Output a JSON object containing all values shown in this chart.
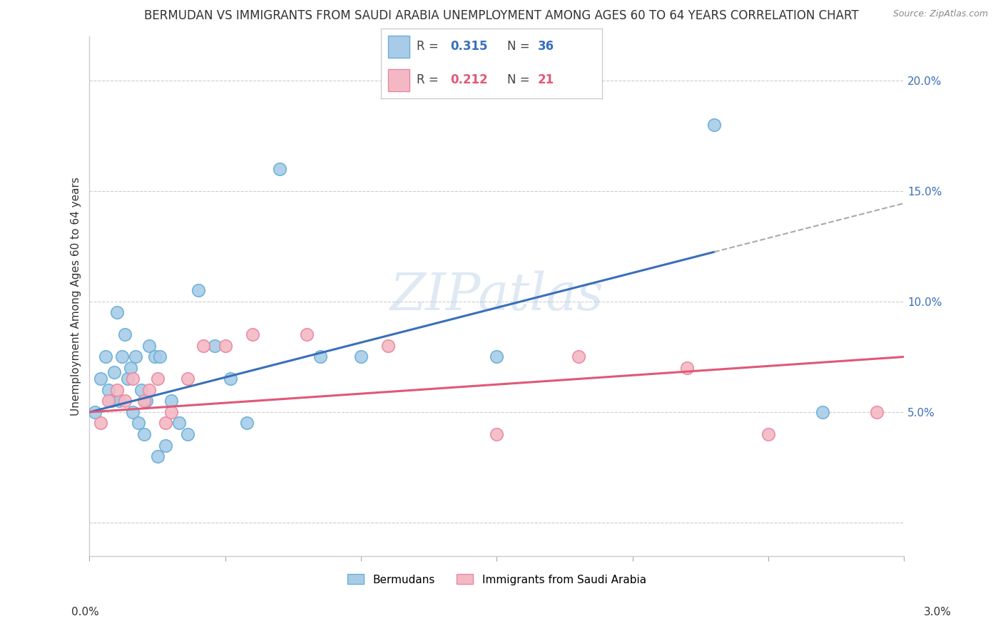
{
  "title": "BERMUDAN VS IMMIGRANTS FROM SAUDI ARABIA UNEMPLOYMENT AMONG AGES 60 TO 64 YEARS CORRELATION CHART",
  "source": "Source: ZipAtlas.com",
  "ylabel": "Unemployment Among Ages 60 to 64 years",
  "watermark": "ZIPatlas",
  "xlim": [
    0.0,
    3.0
  ],
  "ylim": [
    -1.5,
    22.0
  ],
  "yticks": [
    0.0,
    5.0,
    10.0,
    15.0,
    20.0
  ],
  "ytick_labels": [
    "",
    "5.0%",
    "10.0%",
    "15.0%",
    "20.0%"
  ],
  "xtick_positions": [
    0.0,
    0.5,
    1.0,
    1.5,
    2.0,
    2.5,
    3.0
  ],
  "bermudans_color": "#a8cce8",
  "bermudans_edge": "#6aaed6",
  "saudi_color": "#f4b8c4",
  "saudi_edge": "#e888a0",
  "trend_blue": "#3a6fba",
  "trend_pink": "#e05878",
  "trend_dashed_color": "#aaaaaa",
  "legend_R_blue": "0.315",
  "legend_N_blue": "36",
  "legend_R_pink": "0.212",
  "legend_N_pink": "21",
  "grid_color": "#cccccc",
  "background_color": "#ffffff",
  "title_fontsize": 12,
  "axis_tick_fontsize": 11,
  "ylabel_fontsize": 11,
  "bermudans_x": [
    0.02,
    0.04,
    0.06,
    0.07,
    0.08,
    0.09,
    0.1,
    0.11,
    0.12,
    0.13,
    0.14,
    0.15,
    0.16,
    0.17,
    0.18,
    0.19,
    0.2,
    0.21,
    0.22,
    0.24,
    0.26,
    0.28,
    0.3,
    0.33,
    0.36,
    0.4,
    0.46,
    0.52,
    0.58,
    0.7,
    0.85,
    1.0,
    1.5,
    2.3,
    2.7,
    0.25
  ],
  "bermudans_y": [
    5.0,
    6.5,
    7.5,
    6.0,
    5.5,
    6.8,
    9.5,
    5.5,
    7.5,
    8.5,
    6.5,
    7.0,
    5.0,
    7.5,
    4.5,
    6.0,
    4.0,
    5.5,
    8.0,
    7.5,
    7.5,
    3.5,
    5.5,
    4.5,
    4.0,
    10.5,
    8.0,
    6.5,
    4.5,
    16.0,
    7.5,
    7.5,
    7.5,
    18.0,
    5.0,
    3.0
  ],
  "saudi_x": [
    0.04,
    0.07,
    0.1,
    0.13,
    0.16,
    0.2,
    0.22,
    0.25,
    0.28,
    0.3,
    0.36,
    0.42,
    0.5,
    0.6,
    0.8,
    1.1,
    1.5,
    1.8,
    2.2,
    2.5,
    2.9
  ],
  "saudi_y": [
    4.5,
    5.5,
    6.0,
    5.5,
    6.5,
    5.5,
    6.0,
    6.5,
    4.5,
    5.0,
    6.5,
    8.0,
    8.0,
    8.5,
    8.5,
    8.0,
    4.0,
    7.5,
    7.0,
    4.0,
    5.0
  ],
  "blue_trend_x0": 0.0,
  "blue_trend_y0": 5.0,
  "blue_trend_x1": 2.7,
  "blue_trend_y1": 13.5,
  "pink_trend_x0": 0.0,
  "pink_trend_y0": 5.0,
  "pink_trend_x1": 3.0,
  "pink_trend_y1": 7.5,
  "dash_start_x": 2.3,
  "dash_end_x": 3.0
}
